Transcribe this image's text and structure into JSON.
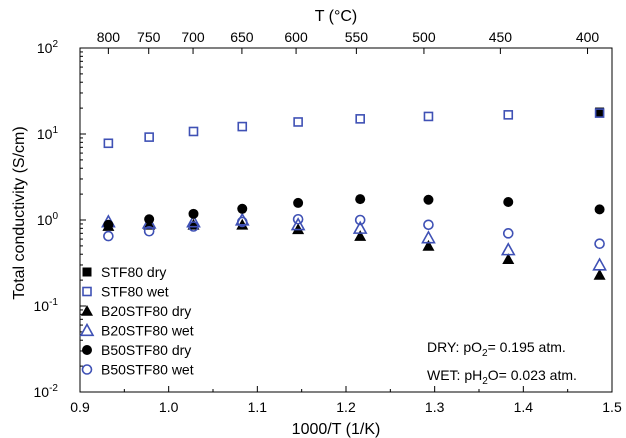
{
  "chart_data": {
    "type": "scatter",
    "xlabel": "1000/T (1/K)",
    "ylabel": "Total conductivity (S/cm)",
    "top_axis_label": "T (°C)",
    "xlim": [
      0.9,
      1.5
    ],
    "ylim": [
      0.01,
      100
    ],
    "yscale": "log",
    "x_ticks": [
      0.9,
      1.0,
      1.1,
      1.2,
      1.3,
      1.4,
      1.5
    ],
    "x_tick_labels": [
      "0.9",
      "1.0",
      "1.1",
      "1.2",
      "1.3",
      "1.4",
      "1.5"
    ],
    "y_ticks": [
      {
        "value": 0.01,
        "mant": "10",
        "exp": "-2"
      },
      {
        "value": 0.1,
        "mant": "10",
        "exp": "-1"
      },
      {
        "value": 1,
        "mant": "10",
        "exp": "0"
      },
      {
        "value": 10,
        "mant": "10",
        "exp": "1"
      },
      {
        "value": 100,
        "mant": "10",
        "exp": "2"
      }
    ],
    "top_ticks": [
      {
        "x": 0.932,
        "label": "800"
      },
      {
        "x": 0.9775,
        "label": "750"
      },
      {
        "x": 1.0275,
        "label": "700"
      },
      {
        "x": 1.0826,
        "label": "650"
      },
      {
        "x": 1.1437,
        "label": "600"
      },
      {
        "x": 1.2117,
        "label": "550"
      },
      {
        "x": 1.2879,
        "label": "500"
      },
      {
        "x": 1.3741,
        "label": "450"
      },
      {
        "x": 1.4724,
        "label": "400"
      }
    ],
    "grid": false,
    "legend_position": "bottom-left",
    "series": [
      {
        "name": "STF80 dry",
        "marker": "square",
        "filled": true,
        "color": "#000000",
        "x": [
          1.486
        ],
        "y": [
          18.0
        ]
      },
      {
        "name": "STF80 wet",
        "marker": "square",
        "filled": false,
        "color": "#3f51b5",
        "x": [
          0.932,
          0.978,
          1.028,
          1.083,
          1.146,
          1.216,
          1.293,
          1.383,
          1.486
        ],
        "y": [
          7.8,
          9.2,
          10.7,
          12.2,
          13.8,
          15.0,
          16.0,
          16.7,
          17.5
        ]
      },
      {
        "name": "B20STF80 dry",
        "marker": "triangle",
        "filled": true,
        "color": "#000000",
        "x": [
          0.932,
          0.978,
          1.028,
          1.083,
          1.146,
          1.216,
          1.293,
          1.383,
          1.486
        ],
        "y": [
          0.85,
          0.88,
          0.88,
          0.88,
          0.78,
          0.65,
          0.5,
          0.35,
          0.23
        ]
      },
      {
        "name": "B20STF80 wet",
        "marker": "triangle",
        "filled": false,
        "color": "#3f51b5",
        "x": [
          0.932,
          0.978,
          1.028,
          1.083,
          1.146,
          1.216,
          1.293,
          1.383,
          1.486
        ],
        "y": [
          0.95,
          0.92,
          0.95,
          1.0,
          0.88,
          0.8,
          0.62,
          0.45,
          0.3
        ]
      },
      {
        "name": "B50STF80 dry",
        "marker": "circle",
        "filled": true,
        "color": "#000000",
        "x": [
          0.932,
          0.978,
          1.028,
          1.083,
          1.146,
          1.216,
          1.293,
          1.383,
          1.486
        ],
        "y": [
          0.88,
          1.02,
          1.18,
          1.35,
          1.58,
          1.75,
          1.72,
          1.62,
          1.33
        ]
      },
      {
        "name": "B50STF80 wet",
        "marker": "circle",
        "filled": false,
        "color": "#3f51b5",
        "x": [
          0.932,
          0.978,
          1.028,
          1.083,
          1.146,
          1.216,
          1.293,
          1.383,
          1.486
        ],
        "y": [
          0.65,
          0.74,
          0.84,
          0.95,
          1.02,
          1.0,
          0.88,
          0.7,
          0.53
        ]
      }
    ],
    "annotations": {
      "dry": {
        "pre": "DRY: pO",
        "sub": "2",
        "post": "= 0.195 atm."
      },
      "wet": {
        "pre": "WET: pH",
        "sub": "2",
        "post": "O= 0.023 atm."
      }
    }
  }
}
